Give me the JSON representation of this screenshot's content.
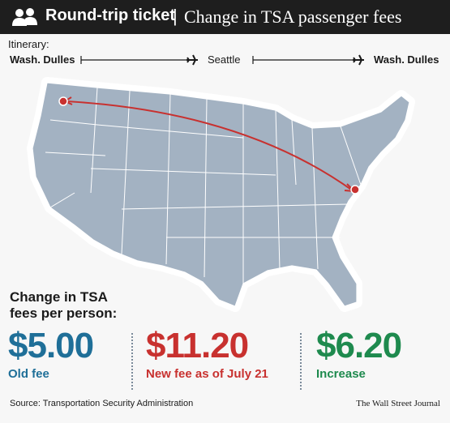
{
  "header": {
    "title_bold": "Round-trip ticket",
    "separator": "|",
    "title_rest": "Change in TSA passenger fees",
    "icon": "people-icon"
  },
  "itinerary": {
    "label": "Itinerary:",
    "origin": "Wash. Dulles",
    "stop": "Seattle",
    "destination": "Wash. Dulles"
  },
  "change_label": {
    "line1": "Change in TSA",
    "line2": "fees per person:"
  },
  "fees": {
    "old": {
      "amount": "$5.00",
      "caption": "Old fee",
      "color": "#1f6f98"
    },
    "new": {
      "amount": "$11.20",
      "caption": "New fee as of July 21",
      "color": "#c8312f"
    },
    "increase": {
      "amount": "$6.20",
      "caption": "Increase",
      "color": "#1e8a4e"
    }
  },
  "footer": {
    "source": "Source: Transportation Security Administration",
    "credit": "The Wall Street Journal"
  },
  "colors": {
    "header_bg": "#1e1e1e",
    "map_fill": "#a3b2c2",
    "route_line": "#c8312f"
  }
}
